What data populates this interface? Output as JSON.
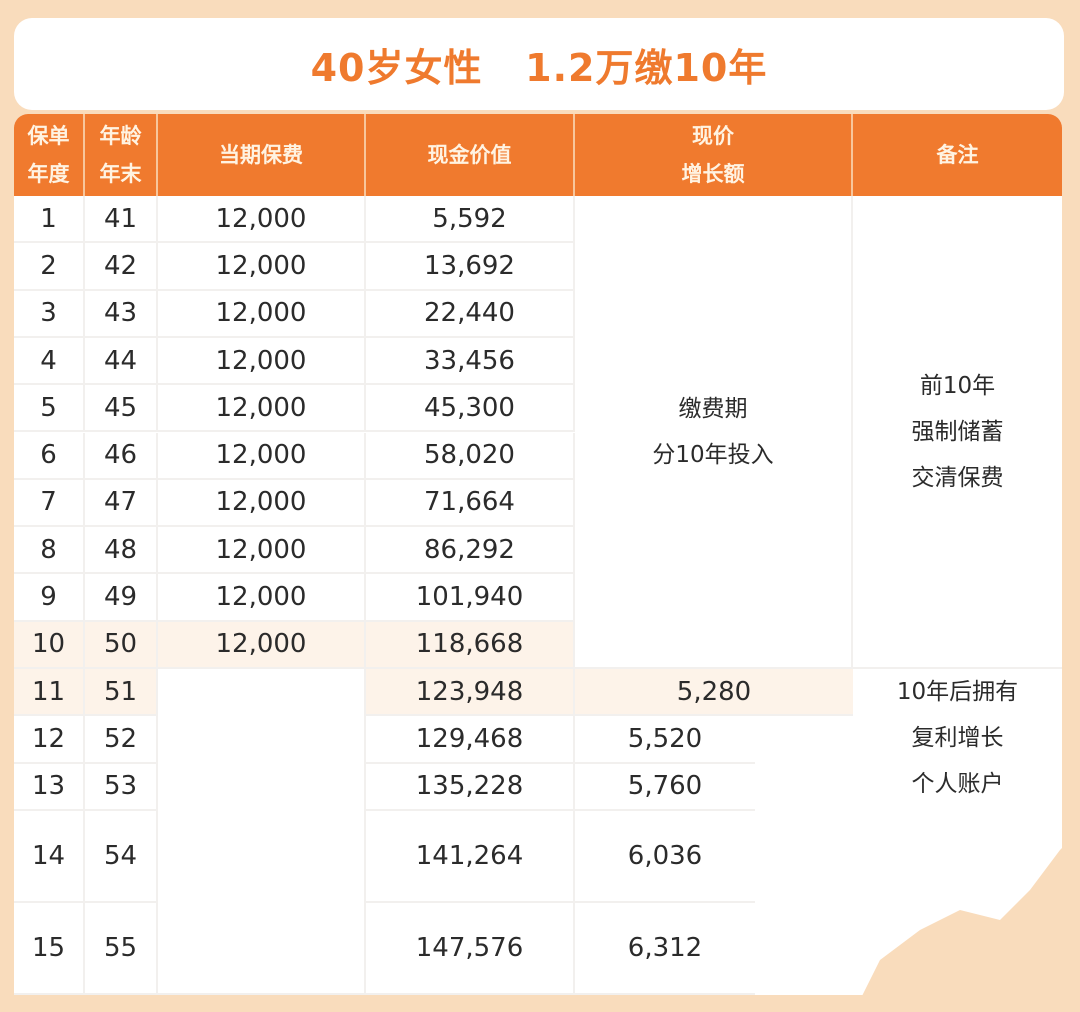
{
  "title": "40岁女性   1.2万缴10年",
  "colors": {
    "accent": "#f07a2e",
    "background": "#f9dcbc",
    "highlight_row": "#fdf3e9"
  },
  "headers": [
    {
      "lines": [
        "保单",
        "年度"
      ]
    },
    {
      "lines": [
        "年龄",
        "年末"
      ]
    },
    {
      "lines": [
        "当期保费"
      ]
    },
    {
      "lines": [
        "现金价值"
      ]
    },
    {
      "lines": [
        "现价",
        "增长额"
      ]
    },
    {
      "lines": [
        "备注"
      ]
    }
  ],
  "rows": [
    {
      "year": "1",
      "age": "41",
      "premium": "12,000",
      "cash_value": "5,592"
    },
    {
      "year": "2",
      "age": "42",
      "premium": "12,000",
      "cash_value": "13,692"
    },
    {
      "year": "3",
      "age": "43",
      "premium": "12,000",
      "cash_value": "22,440"
    },
    {
      "year": "4",
      "age": "44",
      "premium": "12,000",
      "cash_value": "33,456"
    },
    {
      "year": "5",
      "age": "45",
      "premium": "12,000",
      "cash_value": "45,300"
    },
    {
      "year": "6",
      "age": "46",
      "premium": "12,000",
      "cash_value": "58,020"
    },
    {
      "year": "7",
      "age": "47",
      "premium": "12,000",
      "cash_value": "71,664"
    },
    {
      "year": "8",
      "age": "48",
      "premium": "12,000",
      "cash_value": "86,292"
    },
    {
      "year": "9",
      "age": "49",
      "premium": "12,000",
      "cash_value": "101,940"
    },
    {
      "year": "10",
      "age": "50",
      "premium": "12,000",
      "cash_value": "118,668"
    },
    {
      "year": "11",
      "age": "51",
      "premium": "",
      "cash_value": "123,948",
      "growth": "5,280"
    },
    {
      "year": "12",
      "age": "52",
      "premium": "",
      "cash_value": "129,468",
      "growth": "5,520"
    },
    {
      "year": "13",
      "age": "53",
      "premium": "",
      "cash_value": "135,228",
      "growth": "5,760"
    },
    {
      "year": "14",
      "age": "54",
      "premium": "",
      "cash_value": "141,264",
      "growth": "6,036"
    },
    {
      "year": "15",
      "age": "55",
      "premium": "",
      "cash_value": "147,576",
      "growth": "6,312"
    }
  ],
  "merged_notes": {
    "growth_years_1_10": [
      "缴费期",
      "分10年投入"
    ],
    "remark_years_1_10": [
      "前10年",
      "强制储蓄",
      "交清保费"
    ],
    "remark_years_11_plus": [
      "10年后拥有",
      "复利增长",
      "个人账户"
    ]
  }
}
